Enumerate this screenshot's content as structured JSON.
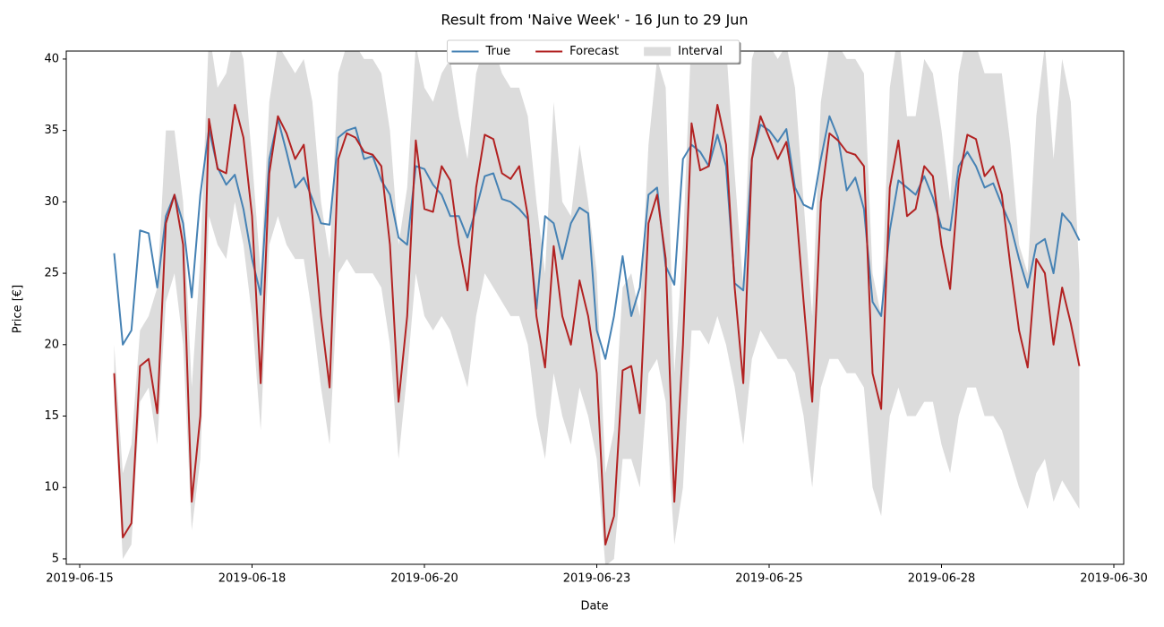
{
  "chart_data": {
    "type": "line",
    "title": "Result from 'Naive Week' - 16 Jun to 29 Jun",
    "x_label": "Date",
    "y_label": "Price [€]",
    "x": [
      15.5,
      15.625,
      15.75,
      15.875,
      16,
      16.125,
      16.25,
      16.375,
      16.5,
      16.625,
      16.75,
      16.875,
      17,
      17.125,
      17.25,
      17.375,
      17.5,
      17.625,
      17.75,
      17.875,
      18,
      18.125,
      18.25,
      18.375,
      18.5,
      18.625,
      18.75,
      18.875,
      19,
      19.125,
      19.25,
      19.375,
      19.5,
      19.625,
      19.75,
      19.875,
      20,
      20.125,
      20.25,
      20.375,
      20.5,
      20.625,
      20.75,
      20.875,
      21,
      21.125,
      21.25,
      21.375,
      21.5,
      21.625,
      21.75,
      21.875,
      22,
      22.125,
      22.25,
      22.375,
      22.5,
      22.625,
      22.75,
      22.875,
      23,
      23.125,
      23.25,
      23.375,
      23.5,
      23.625,
      23.75,
      23.875,
      24,
      24.125,
      24.25,
      24.375,
      24.5,
      24.625,
      24.75,
      24.875,
      25,
      25.125,
      25.25,
      25.375,
      25.5,
      25.625,
      25.75,
      25.875,
      26,
      26.125,
      26.25,
      26.375,
      26.5,
      26.625,
      26.75,
      26.875,
      27,
      27.125,
      27.25,
      27.375,
      27.5,
      27.625,
      27.75,
      27.875,
      28,
      28.125,
      28.25,
      28.375,
      28.5,
      28.625,
      28.75,
      28.875,
      29,
      29.125,
      29.25,
      29.375,
      29.5
    ],
    "series": [
      {
        "name": "True",
        "color": "#4682b4",
        "values": [
          26.4,
          20.0,
          21,
          28,
          27.8,
          24,
          29,
          30.5,
          28.5,
          23.3,
          30.5,
          35.1,
          32.4,
          31.2,
          31.9,
          29.5,
          26,
          23.5,
          33,
          35.8,
          33.5,
          31.0,
          31.7,
          30.2,
          28.5,
          28.4,
          34.5,
          35.0,
          35.2,
          33,
          33.2,
          31.5,
          30.5,
          27.5,
          27.0,
          32.5,
          32.3,
          31.2,
          30.5,
          29,
          29,
          27.5,
          29.5,
          31.8,
          32,
          30.2,
          30.0,
          29.5,
          28.8,
          22.5,
          29,
          28.5,
          26,
          28.5,
          29.6,
          29.2,
          21,
          19,
          22,
          26.2,
          22,
          24,
          30.5,
          31,
          25.5,
          24.2,
          33,
          34,
          33.5,
          32.5,
          34.7,
          32.5,
          24.3,
          23.8,
          33,
          35.4,
          35,
          34.2,
          35.1,
          31,
          29.8,
          29.5,
          33,
          36.0,
          34.5,
          30.8,
          31.7,
          29.5,
          23,
          22,
          28,
          31.5,
          31,
          30.5,
          31.8,
          30.3,
          28.2,
          28.0,
          32.5,
          33.5,
          32.5,
          31,
          31.3,
          29.8,
          28.4,
          26,
          24,
          27,
          27.4,
          25,
          29.2,
          28.5,
          27.3
        ]
      },
      {
        "name": "Forecast",
        "color": "#b22222",
        "values": [
          18,
          6.5,
          7.5,
          18.5,
          19,
          15.2,
          28.5,
          30.5,
          27,
          9,
          15,
          35.8,
          32.3,
          32,
          36.8,
          34.5,
          29,
          17.3,
          32,
          36,
          34.8,
          33,
          34,
          29,
          22,
          17,
          33,
          34.8,
          34.5,
          33.5,
          33.3,
          32.5,
          27,
          16,
          22,
          34.3,
          29.5,
          29.3,
          32.5,
          31.5,
          27,
          23.8,
          31,
          34.7,
          34.4,
          32,
          31.6,
          32.5,
          29,
          22,
          18.4,
          26.9,
          22,
          20,
          24.5,
          22,
          18,
          6,
          8,
          18.2,
          18.5,
          15.2,
          28.5,
          30.5,
          26,
          9,
          20,
          35.5,
          32.2,
          32.5,
          36.8,
          34,
          24,
          17.3,
          33,
          36,
          34.5,
          33,
          34.2,
          30.5,
          23,
          16,
          30,
          34.8,
          34.3,
          33.5,
          33.3,
          32.5,
          18,
          15.5,
          31,
          34.3,
          29,
          29.5,
          32.5,
          31.8,
          27,
          23.9,
          31.5,
          34.7,
          34.4,
          31.8,
          32.5,
          30.5,
          25.5,
          21,
          18.4,
          26,
          25,
          20,
          24,
          21.5,
          18.5
        ]
      },
      {
        "name": "Interval",
        "color": "#dcdcdc",
        "type": "band",
        "upper": [
          20,
          11,
          13,
          21,
          22,
          24,
          35,
          35,
          30,
          17,
          26,
          42,
          38,
          39,
          42,
          40,
          33,
          25,
          37,
          41,
          40,
          39,
          40,
          37,
          30,
          26,
          39,
          41,
          41,
          40,
          40,
          39,
          35,
          27,
          31,
          41,
          38,
          37,
          39,
          40,
          36,
          33,
          39,
          41,
          41,
          39,
          38,
          38,
          36,
          30,
          25,
          37,
          30,
          29,
          34,
          30,
          25,
          11,
          14,
          24,
          25,
          22,
          34,
          40,
          38,
          18,
          27,
          42,
          40,
          40,
          42,
          41,
          32,
          24,
          40,
          42,
          41,
          40,
          41,
          38,
          30,
          22,
          37,
          41,
          41,
          40,
          40,
          39,
          25,
          22,
          38,
          42,
          36,
          36,
          40,
          39,
          35,
          30,
          39,
          42,
          41,
          39,
          39,
          39,
          34,
          27,
          25,
          36,
          41,
          33,
          40,
          37,
          25
        ],
        "lower": [
          16,
          5,
          6,
          16,
          17,
          13,
          23,
          25,
          20,
          7,
          12,
          29,
          27,
          26,
          30,
          27,
          22,
          14,
          27,
          29,
          27,
          26,
          26,
          22,
          17,
          13,
          25,
          26,
          25,
          25,
          25,
          24,
          20,
          12,
          18,
          25,
          22,
          21,
          22,
          21,
          19,
          17,
          22,
          25,
          24,
          23,
          22,
          22,
          20,
          15,
          12,
          18,
          15,
          13,
          17,
          15,
          12,
          4.5,
          5,
          12,
          12,
          10,
          18,
          19,
          16,
          6,
          10,
          21,
          21,
          20,
          22,
          20,
          17,
          13,
          19,
          21,
          20,
          19,
          19,
          18,
          15,
          10,
          17,
          19,
          19,
          18,
          18,
          17,
          10,
          8,
          15,
          17,
          15,
          15,
          16,
          16,
          13,
          11,
          15,
          17,
          17,
          15,
          15,
          14,
          12,
          10,
          8.5,
          11,
          12,
          9,
          10.5,
          9.5,
          8.5
        ]
      }
    ],
    "xlim": [
      14.805,
      30.143
    ],
    "xticks": [
      {
        "value": 15,
        "label": "2019-06-15"
      },
      {
        "value": 17.5,
        "label": "2019-06-18"
      },
      {
        "value": 20,
        "label": "2019-06-20"
      },
      {
        "value": 22.5,
        "label": "2019-06-23"
      },
      {
        "value": 25,
        "label": "2019-06-25"
      },
      {
        "value": 27.5,
        "label": "2019-06-28"
      },
      {
        "value": 30,
        "label": "2019-06-30"
      }
    ],
    "ylim": [
      4.62,
      40.56
    ],
    "yticks": [
      5,
      10,
      15,
      20,
      25,
      30,
      35,
      40
    ],
    "legend": "upper center"
  }
}
